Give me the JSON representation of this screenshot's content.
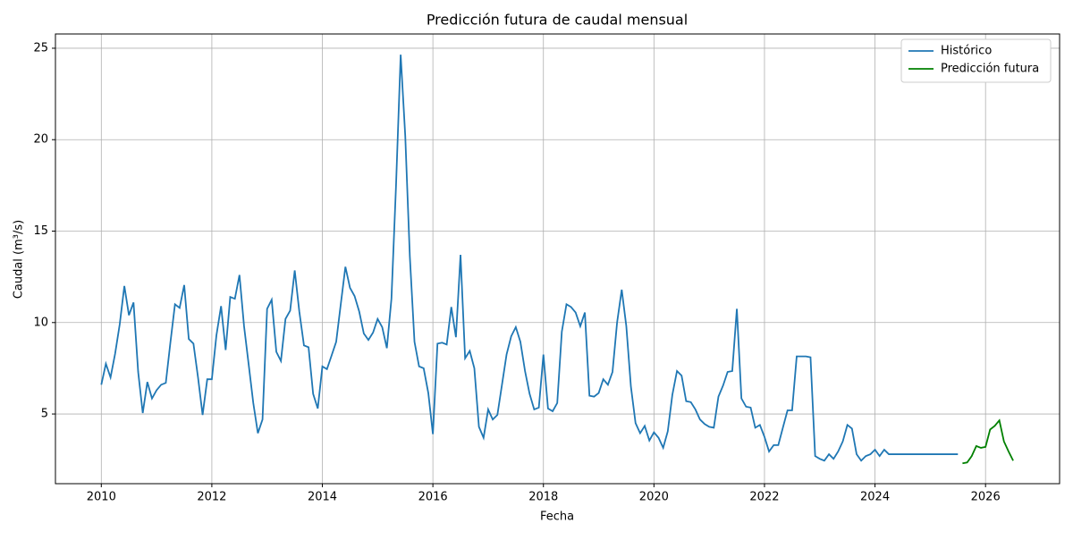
{
  "chart_data": {
    "type": "line",
    "title": "Predicción futura de caudal mensual",
    "x_label": "Fecha",
    "y_label": "Caudal (m³/s)",
    "xlim": [
      2009.17,
      2027.34
    ],
    "xticks": [
      2010,
      2012,
      2014,
      2016,
      2018,
      2020,
      2022,
      2024,
      2026
    ],
    "ylim": [
      1.19,
      25.78
    ],
    "yticks": [
      5,
      10,
      15,
      20,
      25
    ],
    "grid": true,
    "legend": "upper right",
    "series": [
      {
        "name": "Histórico",
        "color": "#1f77b4",
        "x": [
          2010,
          2010.083,
          2010.167,
          2010.25,
          2010.333,
          2010.417,
          2010.5,
          2010.583,
          2010.667,
          2010.75,
          2010.833,
          2010.917,
          2011,
          2011.083,
          2011.167,
          2011.25,
          2011.333,
          2011.417,
          2011.5,
          2011.583,
          2011.667,
          2011.75,
          2011.833,
          2011.917,
          2012,
          2012.083,
          2012.167,
          2012.25,
          2012.333,
          2012.417,
          2012.5,
          2012.583,
          2012.667,
          2012.75,
          2012.833,
          2012.917,
          2013,
          2013.083,
          2013.167,
          2013.25,
          2013.333,
          2013.417,
          2013.5,
          2013.583,
          2013.667,
          2013.75,
          2013.833,
          2013.917,
          2014,
          2014.083,
          2014.167,
          2014.25,
          2014.333,
          2014.417,
          2014.5,
          2014.583,
          2014.667,
          2014.75,
          2014.833,
          2014.917,
          2015,
          2015.083,
          2015.167,
          2015.25,
          2015.333,
          2015.417,
          2015.5,
          2015.583,
          2015.667,
          2015.75,
          2015.833,
          2015.917,
          2016,
          2016.083,
          2016.167,
          2016.25,
          2016.333,
          2016.417,
          2016.5,
          2016.583,
          2016.667,
          2016.75,
          2016.833,
          2016.917,
          2017,
          2017.083,
          2017.167,
          2017.25,
          2017.333,
          2017.417,
          2017.5,
          2017.583,
          2017.667,
          2017.75,
          2017.833,
          2017.917,
          2018,
          2018.083,
          2018.167,
          2018.25,
          2018.333,
          2018.417,
          2018.5,
          2018.583,
          2018.667,
          2018.75,
          2018.833,
          2018.917,
          2019,
          2019.083,
          2019.167,
          2019.25,
          2019.333,
          2019.417,
          2019.5,
          2019.583,
          2019.667,
          2019.75,
          2019.833,
          2019.917,
          2020,
          2020.083,
          2020.167,
          2020.25,
          2020.333,
          2020.417,
          2020.5,
          2020.583,
          2020.667,
          2020.75,
          2020.833,
          2020.917,
          2021,
          2021.083,
          2021.167,
          2021.25,
          2021.333,
          2021.417,
          2021.5,
          2021.583,
          2021.667,
          2021.75,
          2021.833,
          2021.917,
          2022,
          2022.083,
          2022.167,
          2022.25,
          2022.333,
          2022.417,
          2022.5,
          2022.583,
          2022.667,
          2022.75,
          2022.833,
          2022.917,
          2023,
          2023.083,
          2023.167,
          2023.25,
          2023.333,
          2023.417,
          2023.5,
          2023.583,
          2023.667,
          2023.75,
          2023.833,
          2023.917,
          2024,
          2024.083,
          2024.167,
          2024.25,
          2024.333,
          2024.417,
          2024.5,
          2024.583,
          2024.667,
          2024.75,
          2024.833,
          2024.917,
          2025,
          2025.083,
          2025.167,
          2025.25,
          2025.333,
          2025.417,
          2025.5
        ],
        "values": [
          6.6,
          7.75,
          7.0,
          8.3,
          9.9,
          12.0,
          10.4,
          11.1,
          7.3,
          5.05,
          6.75,
          5.85,
          6.3,
          6.6,
          6.7,
          8.9,
          11.0,
          10.8,
          12.05,
          9.1,
          8.85,
          7.0,
          4.95,
          6.9,
          6.9,
          9.3,
          10.9,
          8.5,
          11.4,
          11.3,
          12.6,
          9.8,
          7.7,
          5.6,
          3.95,
          4.7,
          10.75,
          11.25,
          8.4,
          7.9,
          10.2,
          10.65,
          12.85,
          10.6,
          8.75,
          8.65,
          6.1,
          5.3,
          7.6,
          7.45,
          8.2,
          8.95,
          11.0,
          13.05,
          11.9,
          11.45,
          10.6,
          9.4,
          9.05,
          9.45,
          10.2,
          9.75,
          8.6,
          11.3,
          17.5,
          24.65,
          20.2,
          13.6,
          8.95,
          7.6,
          7.5,
          6.15,
          3.9,
          8.85,
          8.9,
          8.8,
          10.85,
          9.2,
          13.7,
          8.05,
          8.45,
          7.5,
          4.3,
          3.7,
          5.25,
          4.7,
          4.95,
          6.6,
          8.25,
          9.25,
          9.75,
          8.95,
          7.35,
          6.1,
          5.25,
          5.35,
          8.25,
          5.3,
          5.15,
          5.6,
          9.5,
          11.0,
          10.85,
          10.55,
          9.8,
          10.55,
          6.0,
          5.95,
          6.15,
          6.9,
          6.6,
          7.3,
          10.0,
          11.8,
          9.8,
          6.5,
          4.5,
          3.95,
          4.35,
          3.55,
          4.0,
          3.7,
          3.15,
          4.05,
          6.05,
          7.35,
          7.1,
          5.7,
          5.65,
          5.25,
          4.7,
          4.45,
          4.3,
          4.25,
          5.95,
          6.55,
          7.3,
          7.35,
          10.75,
          5.85,
          5.4,
          5.35,
          4.25,
          4.4,
          3.75,
          2.95,
          3.3,
          3.3,
          4.25,
          5.2,
          5.2,
          8.15,
          8.15,
          8.15,
          8.1,
          2.7,
          2.55,
          2.45,
          2.8,
          2.55,
          2.95,
          3.5,
          4.4,
          4.2,
          2.8,
          2.45,
          2.7,
          2.8,
          3.05,
          2.7,
          3.05,
          2.8,
          2.8,
          2.8,
          2.8,
          2.8,
          2.8,
          2.8,
          2.8,
          2.8,
          2.8,
          2.8,
          2.8,
          2.8,
          2.8,
          2.8,
          2.8
        ]
      },
      {
        "name": "Predicción futura",
        "color": "#008000",
        "x": [
          2025.583,
          2025.667,
          2025.75,
          2025.833,
          2025.917,
          2026,
          2026.083,
          2026.167,
          2026.25,
          2026.333,
          2026.417,
          2026.5
        ],
        "values": [
          2.3,
          2.35,
          2.7,
          3.25,
          3.15,
          3.2,
          4.15,
          4.35,
          4.65,
          3.5,
          2.95,
          2.45
        ]
      }
    ]
  }
}
